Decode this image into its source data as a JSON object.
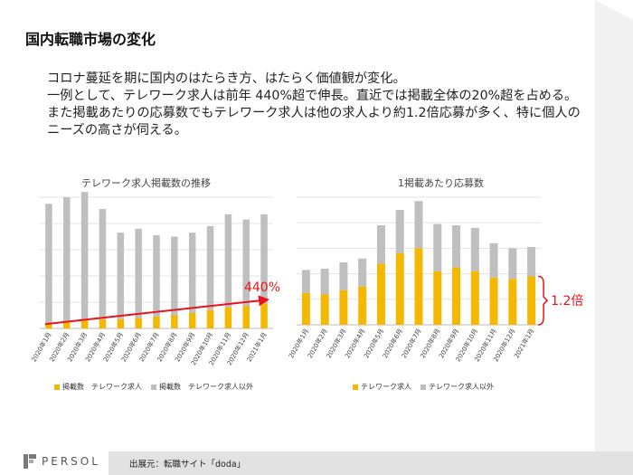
{
  "slide": {
    "title": "国内転職市場の変化",
    "paragraphs": [
      "コロナ蔓延を期に国内のはたらき方、はたらく価値観が変化。",
      "一例として、テレワーク求人は前年 440%超で伸長。直近では掲載全体の20%超を占める。また掲載あたりの応募数でもテレワーク求人は他の求人より約1.2倍応募が多く、特に個人のニーズの高さが伺える。"
    ]
  },
  "chart_data": [
    {
      "type": "bar",
      "stacked": true,
      "title": "テレワーク求人掲載数の推移",
      "categories": [
        "2020年1月",
        "2020年2月",
        "2020年3月",
        "2020年4月",
        "2020年5月",
        "2020年6月",
        "2020年7月",
        "2020年8月",
        "2020年9月",
        "2020年10月",
        "2020年11月",
        "2020年12月",
        "2021年1月"
      ],
      "series": [
        {
          "name": "掲載数　テレワーク求人",
          "color": "#f5b800",
          "values": [
            4,
            5,
            6,
            7,
            7,
            8,
            9,
            10,
            12,
            14,
            16,
            17,
            19
          ]
        },
        {
          "name": "掲載数　テレワーク求人以外",
          "color": "#bfbfbf",
          "values": [
            91,
            95,
            98,
            84,
            66,
            68,
            62,
            60,
            61,
            64,
            71,
            66,
            68
          ]
        }
      ],
      "ylim": [
        0,
        100
      ],
      "annotation": "440%",
      "legend_position": "bottom",
      "grid": true
    },
    {
      "type": "bar",
      "stacked": true,
      "title": "1掲載あたり応募数",
      "categories": [
        "2020年1月",
        "2020年2月",
        "2020年3月",
        "2020年4月",
        "2020年5月",
        "2020年6月",
        "2020年7月",
        "2020年8月",
        "2020年9月",
        "2020年10月",
        "2020年11月",
        "2020年12月",
        "2021年1月"
      ],
      "series": [
        {
          "name": "テレワーク求人",
          "color": "#f5b800",
          "values": [
            25,
            24,
            27,
            30,
            48,
            56,
            60,
            42,
            45,
            42,
            37,
            36,
            38
          ]
        },
        {
          "name": "テレワーク求人以外",
          "color": "#bfbfbf",
          "values": [
            18,
            20,
            22,
            22,
            30,
            34,
            37,
            37,
            33,
            34,
            27,
            24,
            23
          ]
        }
      ],
      "ylim": [
        0,
        100
      ],
      "annotation": "1.2倍",
      "legend_position": "bottom",
      "grid": true
    }
  ],
  "footer": {
    "source": "出展元：転職サイト「doda」",
    "logo_text": "PERSOL"
  },
  "colors": {
    "accent": "#e8141c",
    "telework": "#f5b800",
    "other": "#bfbfbf"
  }
}
